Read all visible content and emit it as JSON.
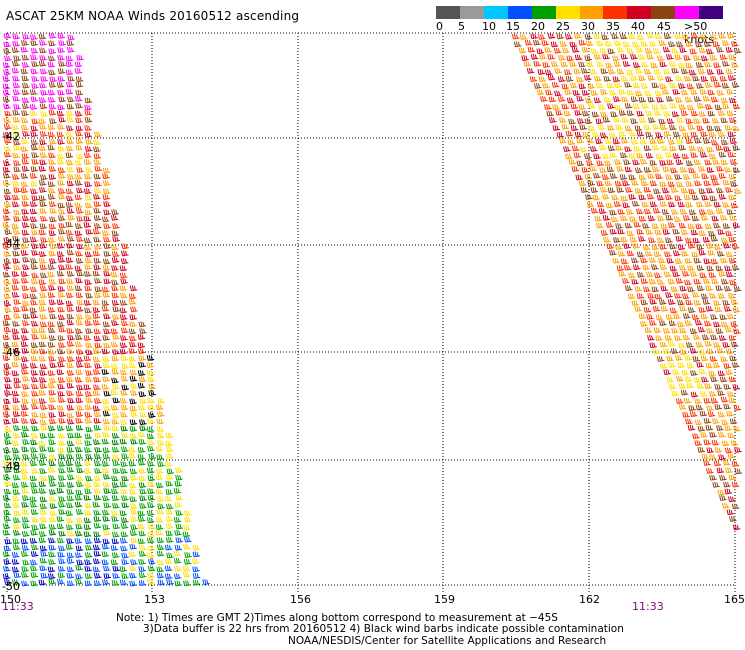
{
  "title": "ASCAT 25KM NOAA Winds 20160512 ascending",
  "legend": {
    "ticks": [
      "0",
      "5",
      "10",
      "15",
      "20",
      "25",
      "30",
      "35",
      "40",
      "45",
      ">50 knots"
    ],
    "colors": [
      "#555555",
      "#9a9a9a",
      "#00c8ff",
      "#0050ff",
      "#00a000",
      "#ffe000",
      "#ffa000",
      "#ff3000",
      "#d00020",
      "#8b4513",
      "#ff00ff",
      "#400080"
    ]
  },
  "axes": {
    "latitudes": [
      "-42",
      "-44",
      "-46",
      "-48",
      "-50"
    ],
    "longitudes": [
      "150",
      "153",
      "156",
      "159",
      "162",
      "165"
    ]
  },
  "times": {
    "left": "11:33",
    "right": "11:33"
  },
  "notes": {
    "line1": "Note: 1) Times are GMT 2)Times along bottom correspond to measurement at −45S",
    "line2": "3)Data buffer is 22 hrs from 20160512 4) Black wind barbs indicate possible contamination",
    "line3": "NOAA/NESDIS/Center for Satellite Applications and Research"
  },
  "map_data": {
    "wind_speed_units": "knots",
    "swaths": [
      {
        "name": "west-swath",
        "dominant_speed_range_knots": [
          20,
          50
        ]
      },
      {
        "name": "east-swath",
        "dominant_speed_range_knots": [
          20,
          40
        ]
      }
    ]
  }
}
